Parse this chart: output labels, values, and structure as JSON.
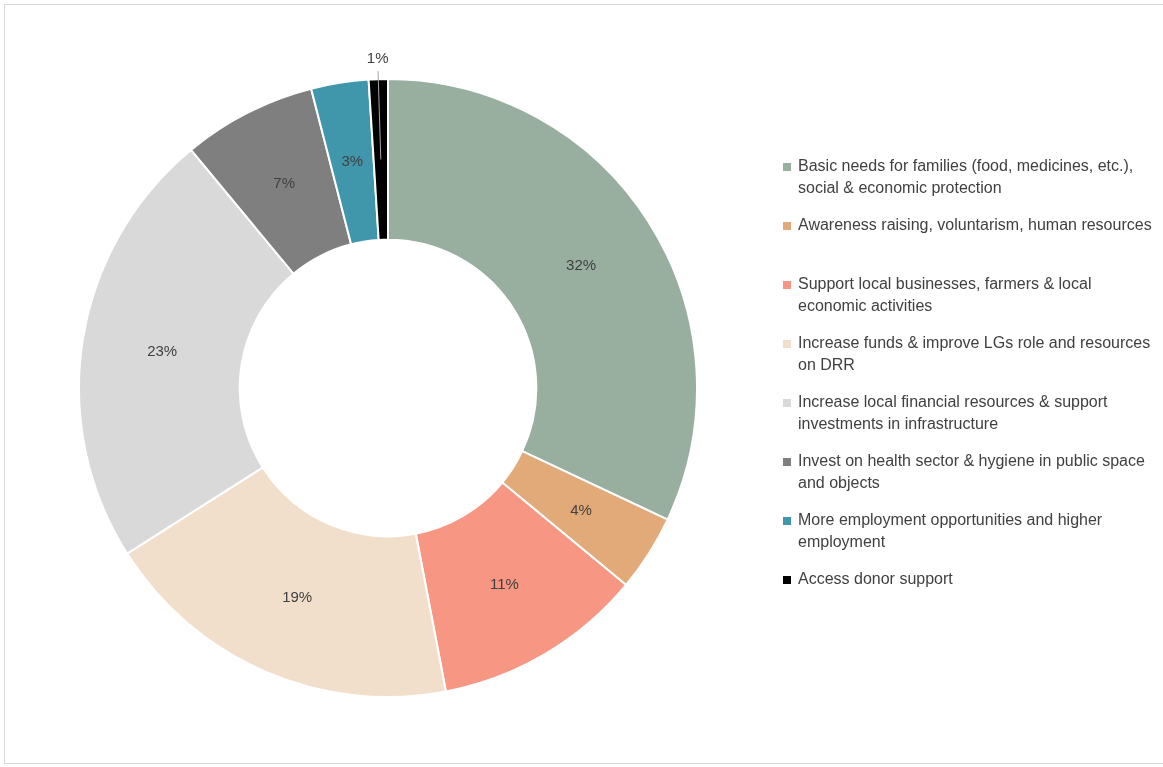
{
  "chart_data": {
    "type": "donut",
    "categories": [
      "Basic needs for families (food, medicines, etc.), social & economic protection",
      "Awareness raising, voluntarism, human resources",
      "Support local businesses, farmers & local economic activities",
      "Increase funds & improve LGs role and resources on DRR",
      "Increase local financial resources & support investments in infrastructure",
      "Invest on health sector & hygiene in public space and objects",
      "More employment opportunities and higher employment",
      "Access donor support"
    ],
    "values": [
      32,
      4,
      11,
      19,
      23,
      7,
      3,
      1
    ],
    "colors": [
      "#98ae9f",
      "#e2aa78",
      "#f79682",
      "#f2dfcb",
      "#d9d9d9",
      "#7f7f7f",
      "#4096ab",
      "#000000"
    ],
    "value_labels": [
      "32%",
      "4%",
      "11%",
      "19%",
      "23%",
      "7%",
      "3%",
      "1%"
    ],
    "legend": "right"
  }
}
